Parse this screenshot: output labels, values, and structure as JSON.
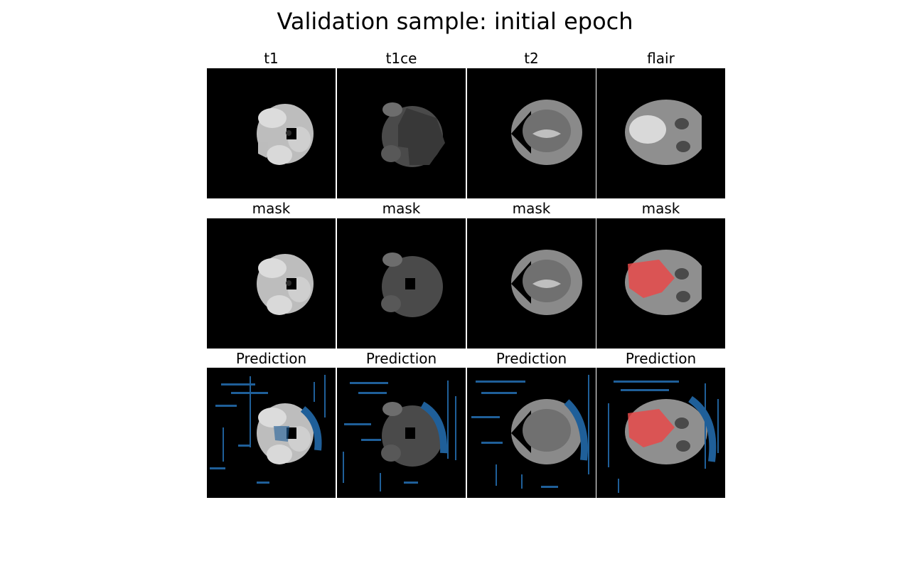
{
  "figure": {
    "title": "Validation sample: initial epoch"
  },
  "rows": [
    {
      "labels": [
        "t1",
        "t1ce",
        "t2",
        "flair"
      ]
    },
    {
      "labels": [
        "mask",
        "mask",
        "mask",
        "mask"
      ]
    },
    {
      "labels": [
        "Prediction",
        "Prediction",
        "Prediction",
        "Prediction"
      ]
    }
  ],
  "colors": {
    "background": "#000000",
    "mask_overlay": "#e84a4a",
    "prediction_overlay": "#1f5f99"
  }
}
